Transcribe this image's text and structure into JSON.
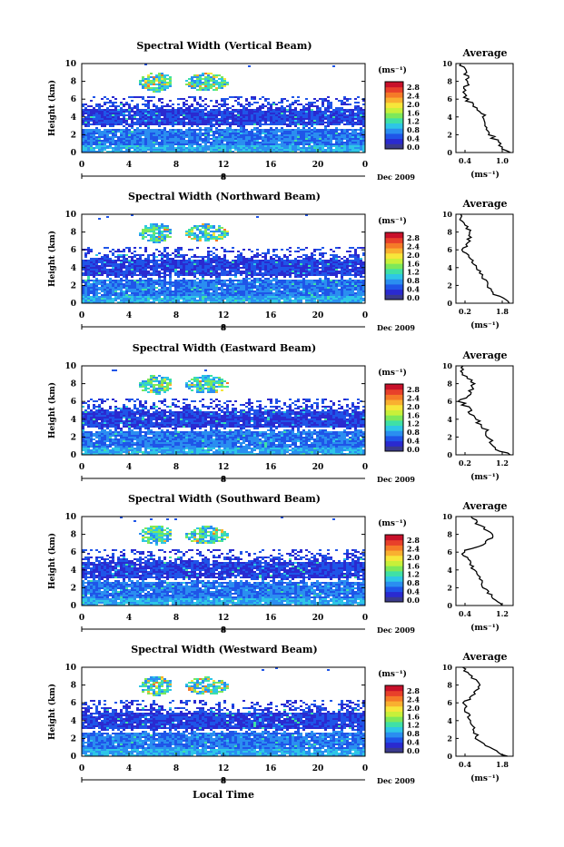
{
  "colorbar": {
    "unit": "(ms⁻¹)",
    "ticks": [
      "2.8",
      "2.4",
      "2.0",
      "1.6",
      "1.2",
      "0.8",
      "0.4",
      "0.0"
    ],
    "colors": [
      "#3a3a8c",
      "#2a2ad0",
      "#1f55e8",
      "#2a8ef0",
      "#2ec6e6",
      "#3fe0a6",
      "#7ee85a",
      "#c8f03a",
      "#f7e63a",
      "#f9b030",
      "#f57a28",
      "#e8402a",
      "#c8102a"
    ]
  },
  "x_ticks": [
    "0",
    "4",
    "8",
    "12",
    "16",
    "20",
    "0"
  ],
  "y_ticks": [
    "10",
    "8",
    "6",
    "4",
    "2",
    "0"
  ],
  "date_marker": "8",
  "date_label": "Dec 2009",
  "ylabel": "Height (km)",
  "xlabel": "Local Time",
  "avg_title": "Average",
  "avg_unit": "(ms⁻¹)",
  "chart_data": [
    {
      "type": "heatmap",
      "title": "Spectral Width (Vertical Beam)",
      "xlabel": "",
      "ylabel": "Height (km)",
      "xlim": [
        0,
        24
      ],
      "ylim": [
        0,
        10
      ],
      "profile": {
        "title": "Average",
        "xlabel": "(ms⁻¹)",
        "ticks": [
          "0.4",
          "1.0"
        ],
        "xlim": [
          0.2,
          1.2
        ],
        "heights": [
          0,
          1,
          2,
          3,
          4,
          5,
          6,
          7,
          8,
          9,
          10
        ],
        "values": [
          1.1,
          0.95,
          0.8,
          0.75,
          0.7,
          0.55,
          0.4,
          0.35,
          0.45,
          0.35,
          0.3
        ]
      }
    },
    {
      "type": "heatmap",
      "title": "Spectral Width (Northward Beam)",
      "xlabel": "",
      "ylabel": "Height (km)",
      "xlim": [
        0,
        24
      ],
      "ylim": [
        0,
        10
      ],
      "profile": {
        "title": "Average",
        "xlabel": "(ms⁻¹)",
        "ticks": [
          "0.2",
          "1.8"
        ],
        "xlim": [
          0.2,
          1.8
        ],
        "heights": [
          0,
          1,
          2,
          3,
          4,
          5,
          6,
          7,
          8,
          9,
          10
        ],
        "values": [
          1.7,
          1.3,
          1.1,
          0.95,
          0.8,
          0.6,
          0.4,
          0.55,
          0.6,
          0.4,
          0.3
        ]
      }
    },
    {
      "type": "heatmap",
      "title": "Spectral Width (Eastward Beam)",
      "xlabel": "",
      "ylabel": "Height (km)",
      "xlim": [
        0,
        24
      ],
      "ylim": [
        0,
        10
      ],
      "profile": {
        "title": "Average",
        "xlabel": "(ms⁻¹)",
        "ticks": [
          "0.2",
          "1.2"
        ],
        "xlim": [
          0.2,
          1.2
        ],
        "heights": [
          0,
          1,
          2,
          3,
          4,
          5,
          6,
          7,
          8,
          9,
          10
        ],
        "values": [
          1.1,
          0.85,
          0.75,
          0.7,
          0.55,
          0.45,
          0.3,
          0.45,
          0.5,
          0.35,
          0.3
        ]
      }
    },
    {
      "type": "heatmap",
      "title": "Spectral Width (Southward Beam)",
      "xlabel": "",
      "ylabel": "Height (km)",
      "xlim": [
        0,
        24
      ],
      "ylim": [
        0,
        10
      ],
      "profile": {
        "title": "Average",
        "xlabel": "(ms⁻¹)",
        "ticks": [
          "0.4",
          "1.2"
        ],
        "xlim": [
          0.2,
          1.4
        ],
        "heights": [
          0,
          1,
          2,
          3,
          4,
          5,
          6,
          7,
          8,
          9,
          10
        ],
        "values": [
          1.2,
          0.95,
          0.8,
          0.75,
          0.6,
          0.45,
          0.35,
          0.8,
          1.0,
          0.7,
          0.5
        ]
      }
    },
    {
      "type": "heatmap",
      "title": "Spectral Width (Westward Beam)",
      "xlabel": "",
      "ylabel": "Height (km)",
      "xlim": [
        0,
        24
      ],
      "ylim": [
        0,
        10
      ],
      "profile": {
        "title": "Average",
        "xlabel": "(ms⁻¹)",
        "ticks": [
          "0.4",
          "1.8"
        ],
        "xlim": [
          0.2,
          1.8
        ],
        "heights": [
          0,
          1,
          2,
          3,
          4,
          5,
          6,
          7,
          8,
          9,
          10
        ],
        "values": [
          1.6,
          1.1,
          0.8,
          0.7,
          0.6,
          0.5,
          0.45,
          0.7,
          0.9,
          0.6,
          0.4
        ]
      }
    }
  ]
}
